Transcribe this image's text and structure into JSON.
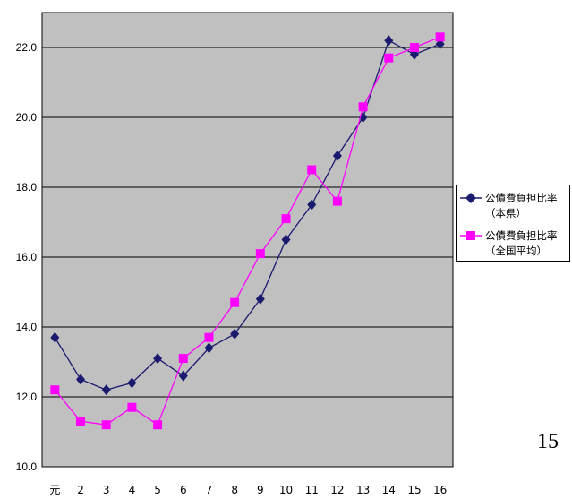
{
  "chart_data": {
    "type": "line",
    "categories": [
      "元",
      "2",
      "3",
      "4",
      "5",
      "6",
      "7",
      "8",
      "9",
      "10",
      "11",
      "12",
      "13",
      "14",
      "15",
      "16"
    ],
    "ylim": [
      10.0,
      23.0
    ],
    "yticks": [
      "10.0",
      "12.0",
      "14.0",
      "16.0",
      "18.0",
      "20.0",
      "22.0"
    ],
    "grid": true,
    "legend_position": "right",
    "series": [
      {
        "name": "公債費負担比率",
        "name_line2": "（本県）",
        "marker": "diamond",
        "color": "#1a1a6e",
        "values": [
          13.7,
          12.5,
          12.2,
          12.4,
          13.1,
          12.6,
          13.4,
          13.8,
          14.8,
          16.5,
          17.5,
          18.9,
          20.0,
          22.2,
          21.8,
          22.1
        ]
      },
      {
        "name": "公債費負担比率",
        "name_line2": "（全国平均）",
        "marker": "square",
        "color": "#ff00ff",
        "values": [
          12.2,
          11.3,
          11.2,
          11.7,
          11.2,
          13.1,
          13.7,
          14.7,
          16.1,
          17.1,
          18.5,
          17.6,
          20.3,
          21.7,
          22.0,
          22.3
        ]
      }
    ]
  },
  "page_number": "15",
  "colors": {
    "plot_background": "#c0c0c0",
    "gridline": "#000000"
  }
}
